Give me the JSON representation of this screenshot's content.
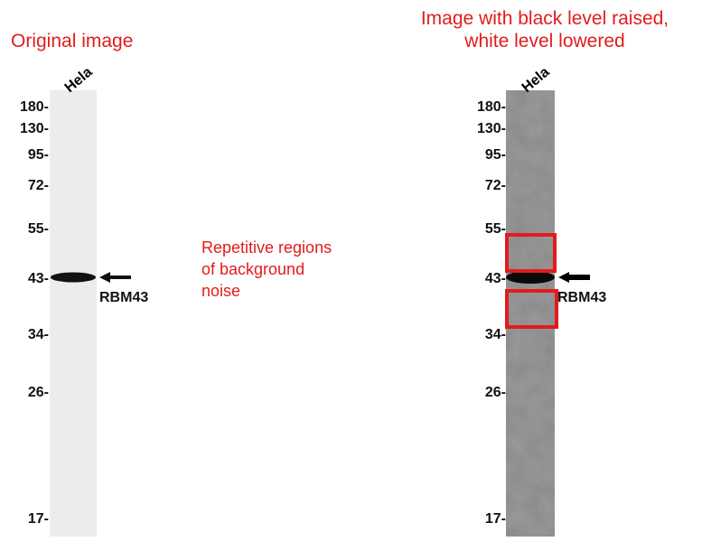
{
  "left_panel": {
    "title": "Original image",
    "lane": "Hela",
    "markers": [
      "180-",
      "130-",
      "95-",
      "72-",
      "55-",
      "43-",
      "34-",
      "26-",
      "17-"
    ],
    "band_label": "RBM43"
  },
  "annotation": [
    "Repetitive regions",
    "of background",
    "noise"
  ],
  "right_panel": {
    "title": [
      "Image with black level raised,",
      "white level lowered"
    ],
    "lane": "Hela",
    "markers": [
      "180-",
      "130-",
      "95-",
      "72-",
      "55-",
      "43-",
      "34-",
      "26-",
      "17-"
    ],
    "band_label": "RBM43"
  }
}
